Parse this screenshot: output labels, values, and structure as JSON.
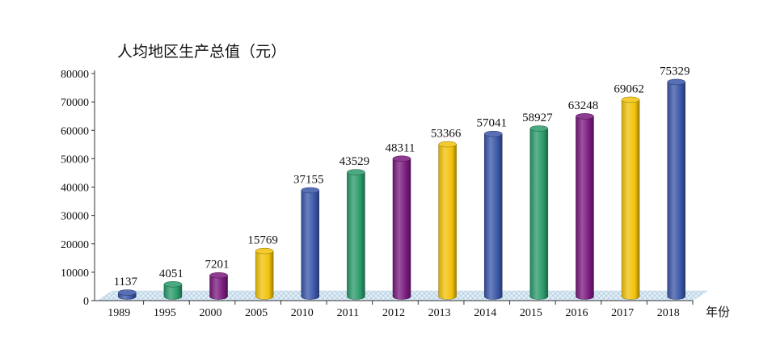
{
  "chart_data": {
    "type": "bar",
    "title": "人均地区生产总值（元）",
    "xlabel": "年份",
    "ylabel": "",
    "ylim": [
      0,
      80000
    ],
    "yticks": [
      0,
      10000,
      20000,
      30000,
      40000,
      50000,
      60000,
      70000,
      80000
    ],
    "grid": false,
    "categories": [
      "1989",
      "1995",
      "2000",
      "2005",
      "2010",
      "2011",
      "2012",
      "2013",
      "2014",
      "2015",
      "2016",
      "2017",
      "2018"
    ],
    "values": [
      1137,
      4051,
      7201,
      15769,
      37155,
      43529,
      48311,
      53366,
      57041,
      58927,
      63248,
      69062,
      75329
    ],
    "data_labels": [
      "1137",
      "4051",
      "7201",
      "15769",
      "37155",
      "43529",
      "48311",
      "53366",
      "57041",
      "58927",
      "63248",
      "69062",
      "75329"
    ],
    "bar_colors": [
      "#3a56a8",
      "#2a9a6a",
      "#7a1a7e",
      "#f2c20a",
      "#3a56a8",
      "#2a9a6a",
      "#7a1a7e",
      "#f2c20a",
      "#3a56a8",
      "#2a9a6a",
      "#7a1a7e",
      "#f2c20a",
      "#3a56a8"
    ],
    "floor_color": "#cfe3f0"
  }
}
